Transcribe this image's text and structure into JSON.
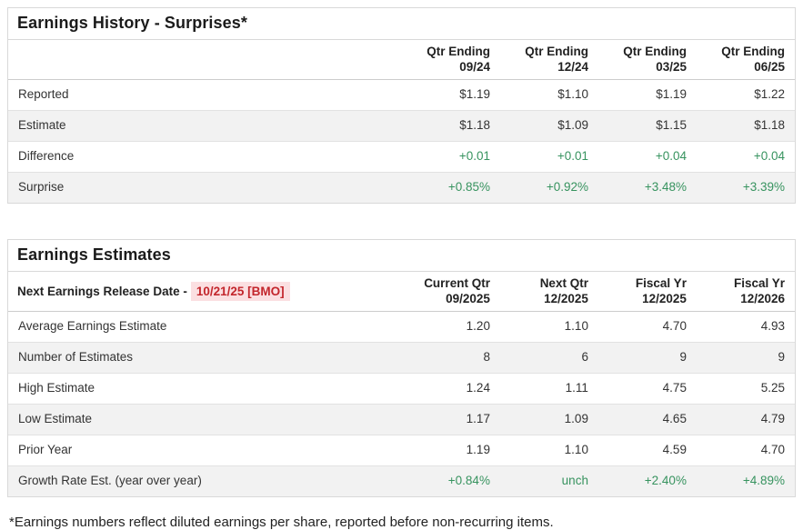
{
  "colors": {
    "positive_green": "#37935f",
    "release_date_red": "#c3262c",
    "release_date_bg": "#fbdfe1",
    "row_shade": "#f2f2f2",
    "panel_border": "#d9d9d9"
  },
  "history": {
    "title": "Earnings History - Surprises*",
    "columns": [
      {
        "top": "Qtr Ending",
        "bottom": "09/24"
      },
      {
        "top": "Qtr Ending",
        "bottom": "12/24"
      },
      {
        "top": "Qtr Ending",
        "bottom": "03/25"
      },
      {
        "top": "Qtr Ending",
        "bottom": "06/25"
      }
    ],
    "rows": [
      {
        "label": "Reported",
        "values": [
          "$1.19",
          "$1.10",
          "$1.19",
          "$1.22"
        ]
      },
      {
        "label": "Estimate",
        "values": [
          "$1.18",
          "$1.09",
          "$1.15",
          "$1.18"
        ]
      },
      {
        "label": "Difference",
        "values": [
          "+0.01",
          "+0.01",
          "+0.04",
          "+0.04"
        ]
      },
      {
        "label": "Surprise",
        "values": [
          "+0.85%",
          "+0.92%",
          "+3.48%",
          "+3.39%"
        ]
      }
    ]
  },
  "estimates": {
    "title": "Earnings Estimates",
    "release_label": "Next Earnings Release Date -",
    "release_date": "10/21/25 [BMO]",
    "columns": [
      {
        "top": "Current Qtr",
        "bottom": "09/2025"
      },
      {
        "top": "Next Qtr",
        "bottom": "12/2025"
      },
      {
        "top": "Fiscal Yr",
        "bottom": "12/2025"
      },
      {
        "top": "Fiscal Yr",
        "bottom": "12/2026"
      }
    ],
    "rows": [
      {
        "label": "Average Earnings Estimate",
        "values": [
          "1.20",
          "1.10",
          "4.70",
          "4.93"
        ]
      },
      {
        "label": "Number of Estimates",
        "values": [
          "8",
          "6",
          "9",
          "9"
        ]
      },
      {
        "label": "High Estimate",
        "values": [
          "1.24",
          "1.11",
          "4.75",
          "5.25"
        ]
      },
      {
        "label": "Low Estimate",
        "values": [
          "1.17",
          "1.09",
          "4.65",
          "4.79"
        ]
      },
      {
        "label": "Prior Year",
        "values": [
          "1.19",
          "1.10",
          "4.59",
          "4.70"
        ]
      },
      {
        "label": "Growth Rate Est. (year over year)",
        "values": [
          "+0.84%",
          "unch",
          "+2.40%",
          "+4.89%"
        ]
      }
    ]
  },
  "footnote": "*Earnings numbers reflect diluted earnings per share, reported before non-recurring items."
}
